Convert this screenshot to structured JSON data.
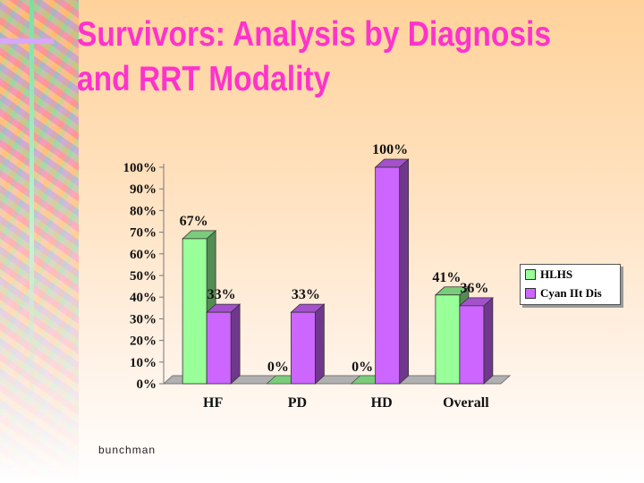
{
  "slide": {
    "title_line1": "Survivors:  Analysis by Diagnosis",
    "title_line2": "and RRT Modality",
    "footer": "bunchman"
  },
  "colors": {
    "title": "#ff33cc",
    "series_0": "#99ff99",
    "series_1": "#cc66ff"
  },
  "chart_data": {
    "type": "bar",
    "title": "",
    "xlabel": "",
    "ylabel": "",
    "categories": [
      "HF",
      "PD",
      "HD",
      "Overall"
    ],
    "series": [
      {
        "name": "HLHS",
        "values": [
          67,
          0,
          0,
          41
        ],
        "labels": [
          "67%",
          "0%",
          "0%",
          "41%"
        ]
      },
      {
        "name": "Cyan IIt Dis",
        "values": [
          33,
          33,
          100,
          36
        ],
        "labels": [
          "33%",
          "33%",
          "100%",
          "36%"
        ]
      }
    ],
    "ylim": [
      0,
      100
    ],
    "yticks": [
      "0%",
      "10%",
      "20%",
      "30%",
      "40%",
      "50%",
      "60%",
      "70%",
      "80%",
      "90%",
      "100%"
    ],
    "legend": "right",
    "grid": false,
    "style": "3d"
  }
}
